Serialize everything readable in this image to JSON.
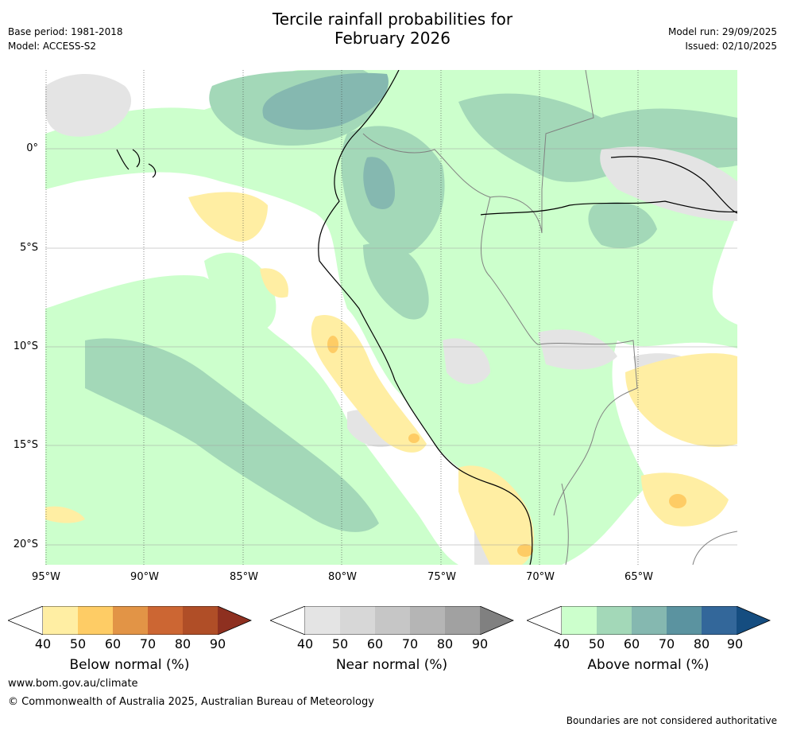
{
  "header": {
    "title_line1": "Tercile rainfall probabilities for",
    "title_line2": "February 2026",
    "base_period": "Base period: 1981-2018",
    "model": "Model: ACCESS-S2",
    "model_run": "Model run: 29/09/2025",
    "issued": "Issued: 02/10/2025"
  },
  "map": {
    "lat_labels": [
      "0°",
      "5°S",
      "10°S",
      "15°S",
      "20°S"
    ],
    "lon_labels": [
      "95°W",
      "90°W",
      "85°W",
      "80°W",
      "75°W",
      "70°W",
      "65°W"
    ]
  },
  "colors": {
    "below": [
      "#ffeea3",
      "#fecc65",
      "#e29446",
      "#cc6633",
      "#b04e27",
      "#8e3020"
    ],
    "near": [
      "#e4e4e4",
      "#d7d7d7",
      "#c6c6c6",
      "#b5b5b5",
      "#a1a1a1",
      "#808080"
    ],
    "above": [
      "#ccffcc",
      "#a3d8b8",
      "#85b8b0",
      "#5b93a0",
      "#33679a",
      "#154d80"
    ],
    "land_outline": "#000000",
    "border": "#808080"
  },
  "legends": [
    {
      "id": "below",
      "label": "Below normal (%)",
      "ticks": [
        "40",
        "50",
        "60",
        "70",
        "80",
        "90"
      ]
    },
    {
      "id": "near",
      "label": "Near normal (%)",
      "ticks": [
        "40",
        "50",
        "60",
        "70",
        "80",
        "90"
      ]
    },
    {
      "id": "above",
      "label": "Above normal (%)",
      "ticks": [
        "40",
        "50",
        "60",
        "70",
        "80",
        "90"
      ]
    }
  ],
  "footer": {
    "website": "www.bom.gov.au/climate",
    "copyright": "© Commonwealth of Australia 2025, Australian Bureau of Meteorology",
    "disclaimer": "Boundaries are not considered authoritative"
  }
}
